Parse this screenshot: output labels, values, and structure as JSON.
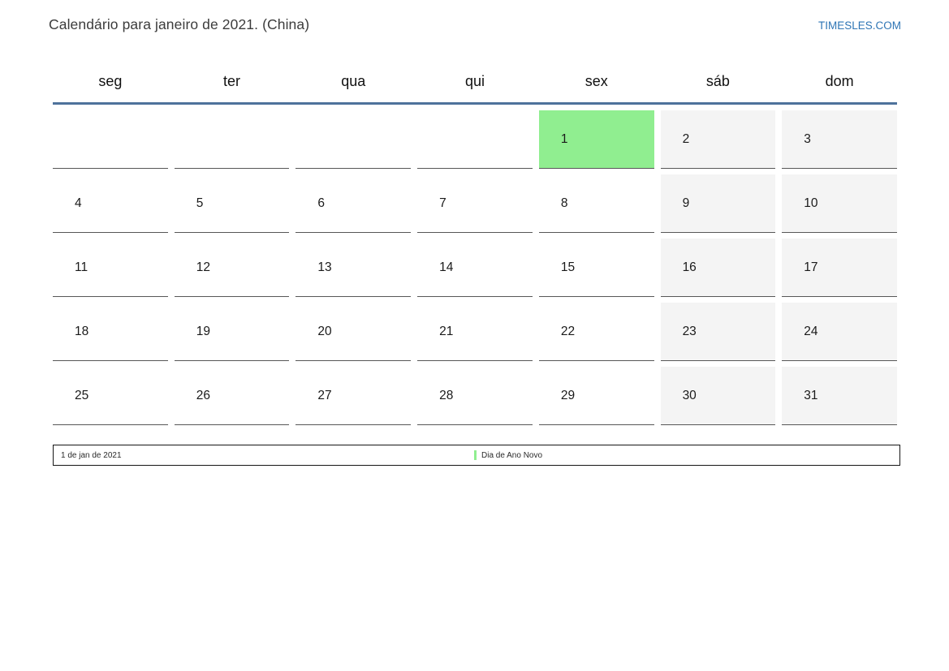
{
  "header": {
    "title": "Calendário para janeiro de 2021. (China)",
    "site": "TIMESLES.COM"
  },
  "weekdays": [
    "seg",
    "ter",
    "qua",
    "qui",
    "sex",
    "sáb",
    "dom"
  ],
  "weeks": [
    [
      {
        "d": "",
        "t": "empty"
      },
      {
        "d": "",
        "t": "empty"
      },
      {
        "d": "",
        "t": "empty"
      },
      {
        "d": "",
        "t": "empty"
      },
      {
        "d": "1",
        "t": "holiday"
      },
      {
        "d": "2",
        "t": "weekend"
      },
      {
        "d": "3",
        "t": "weekend"
      }
    ],
    [
      {
        "d": "4",
        "t": "day"
      },
      {
        "d": "5",
        "t": "day"
      },
      {
        "d": "6",
        "t": "day"
      },
      {
        "d": "7",
        "t": "day"
      },
      {
        "d": "8",
        "t": "day"
      },
      {
        "d": "9",
        "t": "weekend"
      },
      {
        "d": "10",
        "t": "weekend"
      }
    ],
    [
      {
        "d": "11",
        "t": "day"
      },
      {
        "d": "12",
        "t": "day"
      },
      {
        "d": "13",
        "t": "day"
      },
      {
        "d": "14",
        "t": "day"
      },
      {
        "d": "15",
        "t": "day"
      },
      {
        "d": "16",
        "t": "weekend"
      },
      {
        "d": "17",
        "t": "weekend"
      }
    ],
    [
      {
        "d": "18",
        "t": "day"
      },
      {
        "d": "19",
        "t": "day"
      },
      {
        "d": "20",
        "t": "day"
      },
      {
        "d": "21",
        "t": "day"
      },
      {
        "d": "22",
        "t": "day"
      },
      {
        "d": "23",
        "t": "weekend"
      },
      {
        "d": "24",
        "t": "weekend"
      }
    ],
    [
      {
        "d": "25",
        "t": "day"
      },
      {
        "d": "26",
        "t": "day"
      },
      {
        "d": "27",
        "t": "day"
      },
      {
        "d": "28",
        "t": "day"
      },
      {
        "d": "29",
        "t": "day"
      },
      {
        "d": "30",
        "t": "weekend"
      },
      {
        "d": "31",
        "t": "weekend"
      }
    ]
  ],
  "legend": {
    "date": "1 de jan de 2021",
    "holiday": "Dia de Ano Novo"
  },
  "colors": {
    "holiday_green": "#90ee90",
    "weekend_gray": "#f4f4f4",
    "header_rule_blue": "#4e729b",
    "site_link_blue": "#2e75b5"
  }
}
